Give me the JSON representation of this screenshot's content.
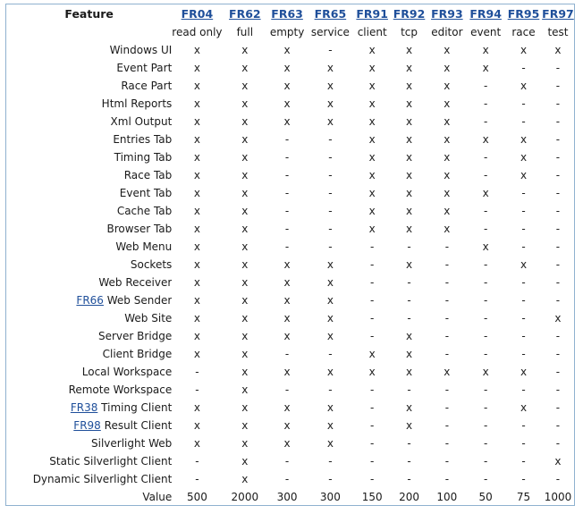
{
  "table": {
    "feature_header": "Feature",
    "columns": [
      {
        "code": "FR04",
        "label": "read only"
      },
      {
        "code": "FR62",
        "label": "full"
      },
      {
        "code": "FR63",
        "label": "empty"
      },
      {
        "code": "FR65",
        "label": "service"
      },
      {
        "code": "FR91",
        "label": "client"
      },
      {
        "code": "FR92",
        "label": "tcp"
      },
      {
        "code": "FR93",
        "label": "editor"
      },
      {
        "code": "FR94",
        "label": "event"
      },
      {
        "code": "FR95",
        "label": "race"
      },
      {
        "code": "FR97",
        "label": "test"
      }
    ],
    "rows": [
      {
        "link": "",
        "feature": "Windows UI",
        "cells": [
          "x",
          "x",
          "x",
          "-",
          "x",
          "x",
          "x",
          "x",
          "x",
          "x"
        ]
      },
      {
        "link": "",
        "feature": "Event Part",
        "cells": [
          "x",
          "x",
          "x",
          "x",
          "x",
          "x",
          "x",
          "x",
          "-",
          "-"
        ]
      },
      {
        "link": "",
        "feature": "Race Part",
        "cells": [
          "x",
          "x",
          "x",
          "x",
          "x",
          "x",
          "x",
          "-",
          "x",
          "-"
        ]
      },
      {
        "link": "",
        "feature": "Html Reports",
        "cells": [
          "x",
          "x",
          "x",
          "x",
          "x",
          "x",
          "x",
          "-",
          "-",
          "-"
        ]
      },
      {
        "link": "",
        "feature": "Xml Output",
        "cells": [
          "x",
          "x",
          "x",
          "x",
          "x",
          "x",
          "x",
          "-",
          "-",
          "-"
        ]
      },
      {
        "link": "",
        "feature": "Entries Tab",
        "cells": [
          "x",
          "x",
          "-",
          "-",
          "x",
          "x",
          "x",
          "x",
          "x",
          "-"
        ]
      },
      {
        "link": "",
        "feature": "Timing Tab",
        "cells": [
          "x",
          "x",
          "-",
          "-",
          "x",
          "x",
          "x",
          "-",
          "x",
          "-"
        ]
      },
      {
        "link": "",
        "feature": "Race Tab",
        "cells": [
          "x",
          "x",
          "-",
          "-",
          "x",
          "x",
          "x",
          "-",
          "x",
          "-"
        ]
      },
      {
        "link": "",
        "feature": "Event Tab",
        "cells": [
          "x",
          "x",
          "-",
          "-",
          "x",
          "x",
          "x",
          "x",
          "-",
          "-"
        ]
      },
      {
        "link": "",
        "feature": "Cache Tab",
        "cells": [
          "x",
          "x",
          "-",
          "-",
          "x",
          "x",
          "x",
          "-",
          "-",
          "-"
        ]
      },
      {
        "link": "",
        "feature": "Browser Tab",
        "cells": [
          "x",
          "x",
          "-",
          "-",
          "x",
          "x",
          "x",
          "-",
          "-",
          "-"
        ]
      },
      {
        "link": "",
        "feature": "Web Menu",
        "cells": [
          "x",
          "x",
          "-",
          "-",
          "-",
          "-",
          "-",
          "x",
          "-",
          "-"
        ]
      },
      {
        "link": "",
        "feature": "Sockets",
        "cells": [
          "x",
          "x",
          "x",
          "x",
          "-",
          "x",
          "-",
          "-",
          "x",
          "-"
        ]
      },
      {
        "link": "",
        "feature": "Web Receiver",
        "cells": [
          "x",
          "x",
          "x",
          "x",
          "-",
          "-",
          "-",
          "-",
          "-",
          "-"
        ]
      },
      {
        "link": "FR66",
        "feature": "Web Sender",
        "cells": [
          "x",
          "x",
          "x",
          "x",
          "-",
          "-",
          "-",
          "-",
          "-",
          "-"
        ]
      },
      {
        "link": "",
        "feature": "Web Site",
        "cells": [
          "x",
          "x",
          "x",
          "x",
          "-",
          "-",
          "-",
          "-",
          "-",
          "x"
        ]
      },
      {
        "link": "",
        "feature": "Server Bridge",
        "cells": [
          "x",
          "x",
          "x",
          "x",
          "-",
          "x",
          "-",
          "-",
          "-",
          "-"
        ]
      },
      {
        "link": "",
        "feature": "Client Bridge",
        "cells": [
          "x",
          "x",
          "-",
          "-",
          "x",
          "x",
          "-",
          "-",
          "-",
          "-"
        ]
      },
      {
        "link": "",
        "feature": "Local Workspace",
        "cells": [
          "-",
          "x",
          "x",
          "x",
          "x",
          "x",
          "x",
          "x",
          "x",
          "-"
        ]
      },
      {
        "link": "",
        "feature": "Remote Workspace",
        "cells": [
          "-",
          "x",
          "-",
          "-",
          "-",
          "-",
          "-",
          "-",
          "-",
          "-"
        ]
      },
      {
        "link": "FR38",
        "feature": "Timing Client",
        "cells": [
          "x",
          "x",
          "x",
          "x",
          "-",
          "x",
          "-",
          "-",
          "x",
          "-"
        ]
      },
      {
        "link": "FR98",
        "feature": "Result Client",
        "cells": [
          "x",
          "x",
          "x",
          "x",
          "-",
          "x",
          "-",
          "-",
          "-",
          "-"
        ]
      },
      {
        "link": "",
        "feature": "Silverlight Web",
        "cells": [
          "x",
          "x",
          "x",
          "x",
          "-",
          "-",
          "-",
          "-",
          "-",
          "-"
        ]
      },
      {
        "link": "",
        "feature": "Static Silverlight Client",
        "cells": [
          "-",
          "x",
          "-",
          "-",
          "-",
          "-",
          "-",
          "-",
          "-",
          "x"
        ]
      },
      {
        "link": "",
        "feature": "Dynamic Silverlight Client",
        "cells": [
          "-",
          "x",
          "-",
          "-",
          "-",
          "-",
          "-",
          "-",
          "-",
          "-"
        ]
      }
    ],
    "value_label": "Value",
    "values": [
      "500",
      "2000",
      "300",
      "300",
      "150",
      "200",
      "100",
      "50",
      "75",
      "1000"
    ]
  }
}
